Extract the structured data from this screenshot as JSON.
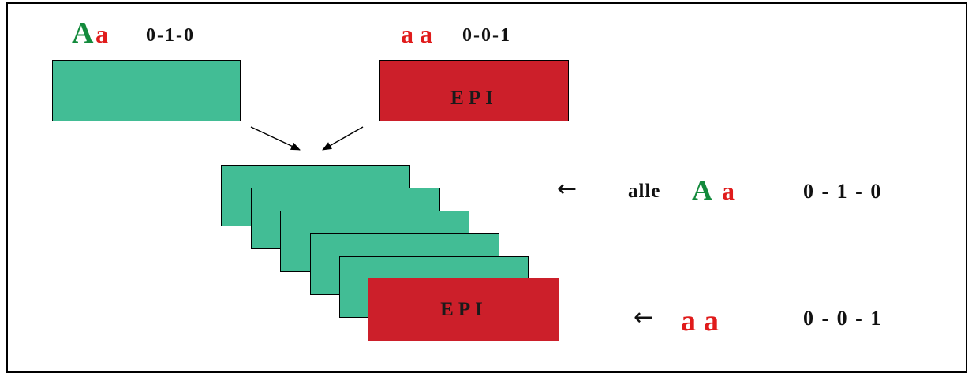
{
  "top_left": {
    "allele_1": "A",
    "allele_2": "a",
    "code": "0-1-0"
  },
  "top_right": {
    "allele_1": "a",
    "allele_2": "a",
    "code": "0-0-1",
    "box_label": "EPI"
  },
  "stack": {
    "front_label": "EPI"
  },
  "legend_row_1": {
    "arrow": "←",
    "prefix": "alle",
    "allele_1": "A",
    "allele_2": "a",
    "code": "0 - 1 - 0"
  },
  "legend_row_2": {
    "arrow": "←",
    "allele_1": "a",
    "allele_2": "a",
    "code": "0 - 0 - 1"
  },
  "colors": {
    "green_box": "#42bd95",
    "red_box": "#cc1f2a",
    "green_text": "#138a3c",
    "red_text": "#e01b1b"
  }
}
